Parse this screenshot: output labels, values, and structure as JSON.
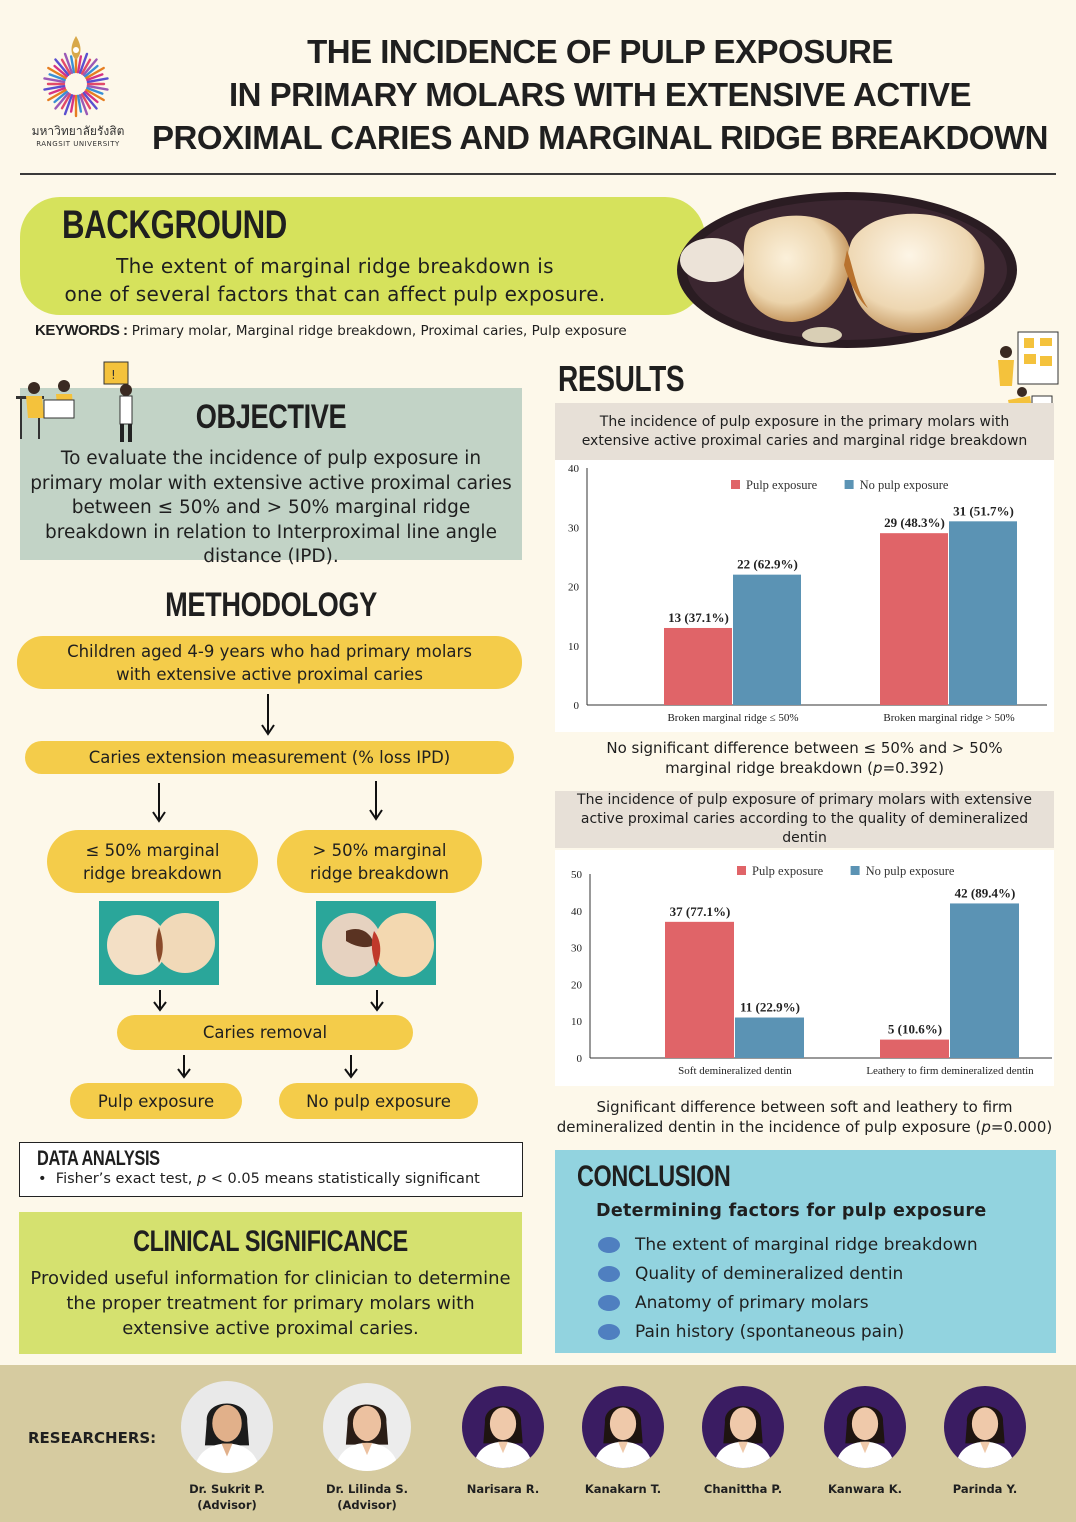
{
  "header": {
    "university_thai": "มหาวิทยาลัยรังสิต",
    "university_en": "RANGSIT UNIVERSITY",
    "title_lines": [
      "THE INCIDENCE OF PULP EXPOSURE",
      "IN PRIMARY MOLARS WITH EXTENSIVE ACTIVE",
      "PROXIMAL CARIES AND MARGINAL RIDGE BREAKDOWN"
    ]
  },
  "background": {
    "title": "BACKGROUND",
    "text_line1": "The extent of marginal ridge breakdown is",
    "text_line2": "one of several factors that can affect pulp exposure."
  },
  "keywords": {
    "label": "KEYWORDS :",
    "text": "Primary molar, Marginal ridge breakdown, Proximal caries, Pulp exposure"
  },
  "objective": {
    "title": "OBJECTIVE",
    "text": "To evaluate the incidence of pulp exposure in primary molar with extensive active proximal caries between ≤ 50% and > 50% marginal ridge breakdown in relation to Interproximal line angle distance (IPD)."
  },
  "methodology": {
    "title": "METHODOLOGY",
    "step1": "Children aged 4-9 years who had primary molars with extensive active proximal caries",
    "step2": "Caries extension measurement (% loss IPD)",
    "branch_left": "≤ 50% marginal ridge breakdown",
    "branch_right": "> 50% marginal ridge breakdown",
    "step3": "Caries removal",
    "outcome_left": "Pulp exposure",
    "outcome_right": "No pulp exposure"
  },
  "data_analysis": {
    "title": "DATA ANALYSIS",
    "bullet_prefix": "Fisher’s exact test, ",
    "bullet_p": "p",
    "bullet_suffix": " < 0.05 means statistically significant"
  },
  "clinical_significance": {
    "title": "CLINICAL SIGNIFICANCE",
    "text": "Provided useful information for clinician to determine the proper treatment for primary molars with extensive active proximal caries."
  },
  "results": {
    "title": "RESULTS",
    "chart1_header": "The incidence of pulp exposure in the primary molars with extensive active proximal caries and marginal ridge breakdown",
    "chart1_note_line1": "No significant difference between  ≤ 50%  and > 50%",
    "chart1_note_line2a": "marginal ridge breakdown (",
    "chart1_note_p": "p",
    "chart1_note_line2b": "=0.392)",
    "chart2_header": "The incidence of pulp exposure of primary molars with extensive active proximal caries according to the quality of demineralized dentin",
    "chart2_note_line1": "Significant difference between soft and leathery to firm",
    "chart2_note_line2a": "demineralized dentin in the incidence of pulp exposure (",
    "chart2_note_p": "p",
    "chart2_note_line2b": "=0.000)"
  },
  "chart_data": [
    {
      "type": "bar",
      "categories": [
        "Broken marginal ridge ≤ 50%",
        "Broken marginal ridge > 50%"
      ],
      "series": [
        {
          "name": "Pulp exposure",
          "values": [
            13,
            29
          ],
          "labels": [
            "13 (37.1%)",
            "29 (48.3%)"
          ],
          "color": "#e06468"
        },
        {
          "name": "No pulp exposure",
          "values": [
            22,
            31
          ],
          "labels": [
            "22 (62.9%)",
            "31 (51.7%)"
          ],
          "color": "#5b93b4"
        }
      ],
      "yticks": [
        0,
        10,
        20,
        30,
        40
      ],
      "ylim": [
        0,
        40
      ],
      "legend": "top-right"
    },
    {
      "type": "bar",
      "categories": [
        "Soft demineralized dentin",
        "Leathery to firm demineralized dentin"
      ],
      "series": [
        {
          "name": "Pulp exposure",
          "values": [
            37,
            5
          ],
          "labels": [
            "37 (77.1%)",
            "5 (10.6%)"
          ],
          "color": "#e06468"
        },
        {
          "name": "No pulp exposure",
          "values": [
            11,
            42
          ],
          "labels": [
            "11 (22.9%)",
            "42 (89.4%)"
          ],
          "color": "#5b93b4"
        }
      ],
      "yticks": [
        0,
        10,
        20,
        30,
        40,
        50
      ],
      "ylim": [
        0,
        50
      ],
      "legend": "top"
    }
  ],
  "conclusion": {
    "title": "CONCLUSION",
    "subtitle": "Determining factors for pulp exposure",
    "items": [
      "The extent of marginal ridge breakdown",
      "Quality of demineralized dentin",
      "Anatomy of primary molars",
      "Pain history (spontaneous pain)"
    ]
  },
  "researchers": {
    "label": "RESEARCHERS:",
    "people": [
      {
        "name": "Dr. Sukrit P.",
        "role": "(Advisor)"
      },
      {
        "name": "Dr. Lilinda S.",
        "role": "(Advisor)"
      },
      {
        "name": "Narisara R.",
        "role": ""
      },
      {
        "name": "Kanakarn T.",
        "role": ""
      },
      {
        "name": "Chanittha P.",
        "role": ""
      },
      {
        "name": "Kanwara K.",
        "role": ""
      },
      {
        "name": "Parinda Y.",
        "role": ""
      }
    ]
  }
}
